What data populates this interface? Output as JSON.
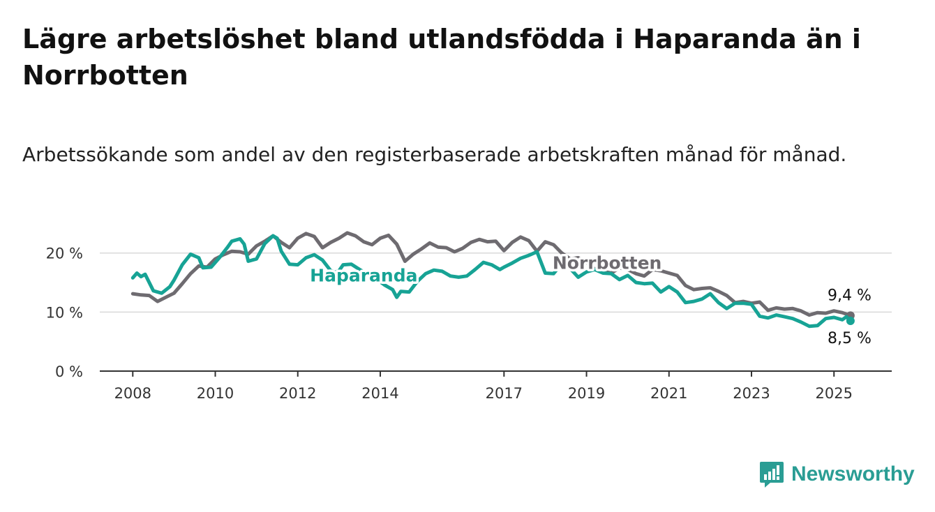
{
  "title": "Lägre arbetslöshet bland utlandsfödda i Haparanda än i Norrbotten",
  "subtitle": "Arbetssökande som andel av den registerbaserade arbetskraften månad för månad.",
  "brand": {
    "name": "Newsworthy",
    "icon": "newsworthy-logo-icon",
    "color": "#2a9d94"
  },
  "chart_data": {
    "type": "line",
    "y_ticks": [
      {
        "value": 0,
        "label": "0 %"
      },
      {
        "value": 10,
        "label": "10 %"
      },
      {
        "value": 20,
        "label": "20 %"
      }
    ],
    "x_ticks": [
      {
        "value": 2008,
        "label": "2008"
      },
      {
        "value": 2010,
        "label": "2010"
      },
      {
        "value": 2012,
        "label": "2012"
      },
      {
        "value": 2014,
        "label": "2014"
      },
      {
        "value": 2017,
        "label": "2017"
      },
      {
        "value": 2019,
        "label": "2019"
      },
      {
        "value": 2021,
        "label": "2021"
      },
      {
        "value": 2023,
        "label": "2023"
      },
      {
        "value": 2025,
        "label": "2025"
      }
    ],
    "xlim": [
      2007.2,
      2026.4
    ],
    "ylim": [
      0,
      21.5
    ],
    "grid": true,
    "series": [
      {
        "name": "Norrbotten",
        "color": "#6e6b70",
        "end_label": "9,4 %",
        "points": [
          [
            2008.0,
            13.1
          ],
          [
            2008.2,
            12.9
          ],
          [
            2008.4,
            12.8
          ],
          [
            2008.6,
            11.8
          ],
          [
            2008.8,
            12.5
          ],
          [
            2009.0,
            13.2
          ],
          [
            2009.2,
            14.8
          ],
          [
            2009.4,
            16.5
          ],
          [
            2009.6,
            17.8
          ],
          [
            2009.8,
            17.6
          ],
          [
            2010.0,
            19.0
          ],
          [
            2010.2,
            19.7
          ],
          [
            2010.4,
            20.3
          ],
          [
            2010.6,
            20.2
          ],
          [
            2010.8,
            19.8
          ],
          [
            2011.0,
            21.2
          ],
          [
            2011.2,
            22.0
          ],
          [
            2011.4,
            22.9
          ],
          [
            2011.6,
            21.8
          ],
          [
            2011.8,
            20.9
          ],
          [
            2012.0,
            22.5
          ],
          [
            2012.2,
            23.3
          ],
          [
            2012.4,
            22.8
          ],
          [
            2012.6,
            20.9
          ],
          [
            2012.8,
            21.8
          ],
          [
            2013.0,
            22.5
          ],
          [
            2013.2,
            23.4
          ],
          [
            2013.4,
            22.9
          ],
          [
            2013.6,
            21.9
          ],
          [
            2013.8,
            21.4
          ],
          [
            2014.0,
            22.5
          ],
          [
            2014.2,
            23.0
          ],
          [
            2014.4,
            21.5
          ],
          [
            2014.6,
            18.6
          ],
          [
            2014.8,
            19.8
          ],
          [
            2015.0,
            20.7
          ],
          [
            2015.2,
            21.7
          ],
          [
            2015.4,
            21.0
          ],
          [
            2015.6,
            20.9
          ],
          [
            2015.8,
            20.2
          ],
          [
            2016.0,
            20.8
          ],
          [
            2016.2,
            21.8
          ],
          [
            2016.4,
            22.3
          ],
          [
            2016.6,
            21.9
          ],
          [
            2016.8,
            22.0
          ],
          [
            2017.0,
            20.4
          ],
          [
            2017.2,
            21.8
          ],
          [
            2017.4,
            22.7
          ],
          [
            2017.6,
            22.1
          ],
          [
            2017.8,
            20.3
          ],
          [
            2018.0,
            21.9
          ],
          [
            2018.2,
            21.4
          ],
          [
            2018.4,
            20.0
          ],
          [
            2018.6,
            19.0
          ],
          [
            2018.8,
            19.2
          ],
          [
            2019.0,
            18.4
          ],
          [
            2019.2,
            17.3
          ],
          [
            2019.4,
            16.9
          ],
          [
            2019.6,
            16.6
          ],
          [
            2019.8,
            17.5
          ],
          [
            2020.0,
            17.2
          ],
          [
            2020.2,
            16.5
          ],
          [
            2020.4,
            16.1
          ],
          [
            2020.6,
            17.2
          ],
          [
            2020.8,
            17.0
          ],
          [
            2021.0,
            16.6
          ],
          [
            2021.2,
            16.2
          ],
          [
            2021.4,
            14.5
          ],
          [
            2021.6,
            13.8
          ],
          [
            2021.8,
            14.0
          ],
          [
            2022.0,
            14.1
          ],
          [
            2022.2,
            13.5
          ],
          [
            2022.4,
            12.8
          ],
          [
            2022.6,
            11.6
          ],
          [
            2022.8,
            11.8
          ],
          [
            2023.0,
            11.5
          ],
          [
            2023.2,
            11.7
          ],
          [
            2023.4,
            10.3
          ],
          [
            2023.6,
            10.7
          ],
          [
            2023.8,
            10.5
          ],
          [
            2024.0,
            10.6
          ],
          [
            2024.2,
            10.2
          ],
          [
            2024.4,
            9.5
          ],
          [
            2024.6,
            9.9
          ],
          [
            2024.8,
            9.8
          ],
          [
            2025.0,
            10.2
          ],
          [
            2025.2,
            9.9
          ],
          [
            2025.4,
            9.4
          ]
        ]
      },
      {
        "name": "Haparanda",
        "color": "#17a395",
        "end_label": "8,5 %",
        "points": [
          [
            2008.0,
            15.8
          ],
          [
            2008.1,
            16.6
          ],
          [
            2008.2,
            16.0
          ],
          [
            2008.3,
            16.4
          ],
          [
            2008.5,
            13.6
          ],
          [
            2008.7,
            13.2
          ],
          [
            2008.9,
            14.3
          ],
          [
            2009.0,
            15.4
          ],
          [
            2009.2,
            18.0
          ],
          [
            2009.4,
            19.8
          ],
          [
            2009.6,
            19.2
          ],
          [
            2009.7,
            17.5
          ],
          [
            2009.9,
            17.6
          ],
          [
            2010.1,
            19.2
          ],
          [
            2010.3,
            21.0
          ],
          [
            2010.4,
            22.0
          ],
          [
            2010.6,
            22.4
          ],
          [
            2010.7,
            21.5
          ],
          [
            2010.8,
            18.6
          ],
          [
            2011.0,
            19.0
          ],
          [
            2011.2,
            21.6
          ],
          [
            2011.4,
            22.9
          ],
          [
            2011.5,
            22.5
          ],
          [
            2011.6,
            20.3
          ],
          [
            2011.8,
            18.1
          ],
          [
            2012.0,
            18.0
          ],
          [
            2012.2,
            19.2
          ],
          [
            2012.4,
            19.7
          ],
          [
            2012.6,
            18.8
          ],
          [
            2012.8,
            17.0
          ],
          [
            2012.9,
            16.7
          ],
          [
            2013.0,
            17.0
          ],
          [
            2013.1,
            18.0
          ],
          [
            2013.3,
            18.1
          ],
          [
            2013.5,
            17.2
          ],
          [
            2013.7,
            16.4
          ],
          [
            2013.9,
            15.6
          ],
          [
            2014.1,
            14.6
          ],
          [
            2014.3,
            13.8
          ],
          [
            2014.4,
            12.5
          ],
          [
            2014.5,
            13.5
          ],
          [
            2014.7,
            13.4
          ],
          [
            2014.9,
            15.2
          ],
          [
            2015.1,
            16.5
          ],
          [
            2015.3,
            17.1
          ],
          [
            2015.5,
            16.9
          ],
          [
            2015.7,
            16.1
          ],
          [
            2015.9,
            15.9
          ],
          [
            2016.1,
            16.1
          ],
          [
            2016.3,
            17.2
          ],
          [
            2016.5,
            18.4
          ],
          [
            2016.7,
            18.0
          ],
          [
            2016.9,
            17.2
          ],
          [
            2017.0,
            17.6
          ],
          [
            2017.2,
            18.3
          ],
          [
            2017.4,
            19.1
          ],
          [
            2017.6,
            19.6
          ],
          [
            2017.8,
            20.2
          ],
          [
            2018.0,
            16.6
          ],
          [
            2018.2,
            16.5
          ],
          [
            2018.4,
            18.2
          ],
          [
            2018.6,
            17.4
          ],
          [
            2018.8,
            15.9
          ],
          [
            2019.0,
            16.8
          ],
          [
            2019.2,
            17.2
          ],
          [
            2019.4,
            16.6
          ],
          [
            2019.6,
            16.5
          ],
          [
            2019.8,
            15.5
          ],
          [
            2020.0,
            16.2
          ],
          [
            2020.2,
            15.0
          ],
          [
            2020.4,
            14.8
          ],
          [
            2020.6,
            14.9
          ],
          [
            2020.8,
            13.4
          ],
          [
            2021.0,
            14.3
          ],
          [
            2021.2,
            13.4
          ],
          [
            2021.4,
            11.6
          ],
          [
            2021.6,
            11.8
          ],
          [
            2021.8,
            12.2
          ],
          [
            2022.0,
            13.1
          ],
          [
            2022.2,
            11.6
          ],
          [
            2022.4,
            10.6
          ],
          [
            2022.6,
            11.5
          ],
          [
            2022.8,
            11.5
          ],
          [
            2023.0,
            11.3
          ],
          [
            2023.2,
            9.3
          ],
          [
            2023.4,
            9.0
          ],
          [
            2023.6,
            9.5
          ],
          [
            2023.8,
            9.2
          ],
          [
            2024.0,
            8.9
          ],
          [
            2024.2,
            8.3
          ],
          [
            2024.4,
            7.6
          ],
          [
            2024.6,
            7.7
          ],
          [
            2024.8,
            8.9
          ],
          [
            2025.0,
            9.1
          ],
          [
            2025.2,
            8.7
          ],
          [
            2025.3,
            9.2
          ],
          [
            2025.4,
            8.5
          ]
        ]
      }
    ],
    "annotations": [
      {
        "text": "Haparanda",
        "series": "Haparanda",
        "x": 2013.6,
        "y": 15.2
      },
      {
        "text": "Norrbotten",
        "series": "Norrbotten",
        "x": 2019.5,
        "y": 17.3
      }
    ]
  }
}
